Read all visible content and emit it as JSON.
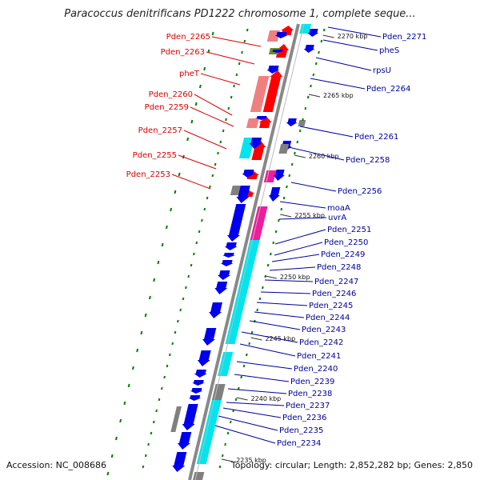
{
  "title": "Paracoccus denitrificans PD1222 chromosome 1, complete seque...",
  "footer": {
    "accession": "Accession: NC_008686",
    "topology": "Topology: circular; Length: 2,852,282 bp; Genes: 2,850"
  },
  "ticks": [
    "2270 kbp",
    "2265 kbp",
    "2260 kbp",
    "2255 kbp",
    "2250 kbp",
    "2245 kbp",
    "2240 kbp",
    "2235 kbp"
  ],
  "left_labels": [
    "Pden_2265",
    "Pden_2263",
    "pheT",
    "Pden_2260",
    "Pden_2259",
    "Pden_2257",
    "Pden_2255",
    "Pden_2253"
  ],
  "right_labels": [
    "Pden_2271",
    "pheS",
    "rpsU",
    "Pden_2264",
    "Pden_2261",
    "Pden_2258",
    "Pden_2256",
    "moaA",
    "uvrA",
    "Pden_2251",
    "Pden_2250",
    "Pden_2249",
    "Pden_2248",
    "Pden_2247",
    "Pden_2246",
    "Pden_2245",
    "Pden_2244",
    "Pden_2243",
    "Pden_2242",
    "Pden_2241",
    "Pden_2240",
    "Pden_2239",
    "Pden_2238",
    "Pden_2237",
    "Pden_2236",
    "Pden_2235",
    "Pden_2234"
  ],
  "colors": {
    "forward_cds": "#ff0000",
    "reverse_cds": "#0000ee",
    "forward_shading": "#f08080",
    "reverse_shading": "#00e5ee",
    "rna": "#808080",
    "magenta": "#ee1c9e",
    "olive": "#6b8e23",
    "backbone": "#888888",
    "tick_marks": "#008000",
    "left_label": "#dd0000",
    "right_label": "#000099"
  }
}
